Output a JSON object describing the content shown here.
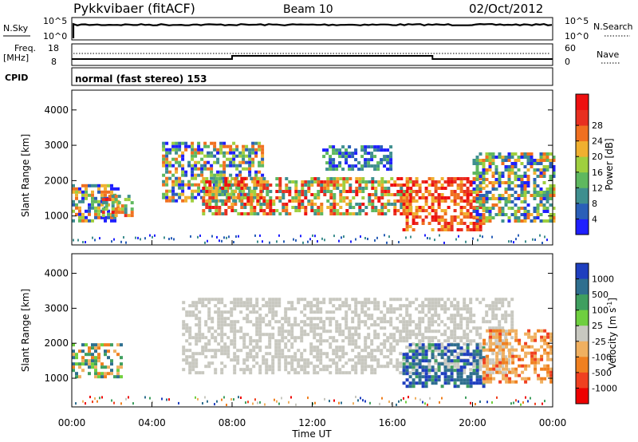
{
  "header": {
    "station": "Pykkvibaer (fitACF)",
    "beam": "Beam 10",
    "date": "02/Oct/2012"
  },
  "sky_panel": {
    "left_label": "N.Sky",
    "left_top_tick": "10^5",
    "left_bottom_tick": "10^0",
    "right_label": "N.Search",
    "right_top_tick": "10^5",
    "right_bottom_tick": "10^0"
  },
  "freq_panel": {
    "left_label_1": "Freq.",
    "left_label_2": "[MHz]",
    "left_top_tick": "18",
    "left_bottom_tick": "8",
    "right_label": "Nave",
    "right_top_tick": "60",
    "right_bottom_tick": "0"
  },
  "cpid_panel": {
    "label": "CPID",
    "mode": "normal (fast stereo) 153"
  },
  "chart_data": [
    {
      "type": "heatmap",
      "name": "power",
      "ylabel": "Slant Range [km]",
      "yticks": [
        "1000",
        "2000",
        "3000",
        "4000"
      ],
      "ylim": [
        180,
        4560
      ],
      "xlim": [
        0,
        24
      ],
      "colorbar_label": "Power [dB]",
      "colorbar_ticks": [
        "4",
        "8",
        "12",
        "16",
        "20",
        "24",
        "28"
      ],
      "colorbar_colors": [
        "#1f1fff",
        "#2a5fb8",
        "#3f8f8f",
        "#5fb85f",
        "#9fcf3f",
        "#f0b030",
        "#f07020",
        "#e83020",
        "#ee1010"
      ],
      "echo_regions": [
        {
          "t0": 0.0,
          "t1": 2.3,
          "r0": 900,
          "r1": 1900,
          "level": "mixed"
        },
        {
          "t0": 1.5,
          "t1": 3.0,
          "r0": 1000,
          "r1": 1600,
          "level": "strong"
        },
        {
          "t0": 4.5,
          "t1": 9.5,
          "r0": 1400,
          "r1": 3100,
          "level": "mixed"
        },
        {
          "t0": 6.5,
          "t1": 17.0,
          "r0": 1100,
          "r1": 2100,
          "level": "strong"
        },
        {
          "t0": 12.5,
          "t1": 16.0,
          "r0": 2300,
          "r1": 3000,
          "level": "weak"
        },
        {
          "t0": 16.5,
          "t1": 20.5,
          "r0": 600,
          "r1": 2100,
          "level": "very_strong"
        },
        {
          "t0": 20.0,
          "t1": 24.0,
          "r0": 900,
          "r1": 2800,
          "level": "mixed"
        }
      ]
    },
    {
      "type": "heatmap",
      "name": "velocity",
      "ylabel": "Slant Range [km]",
      "xlabel": "Time UT",
      "yticks": [
        "1000",
        "2000",
        "3000",
        "4000"
      ],
      "ylim": [
        180,
        4560
      ],
      "xlim": [
        0,
        24
      ],
      "xticks": [
        "00:00",
        "04:00",
        "08:00",
        "12:00",
        "16:00",
        "20:00",
        "00:00"
      ],
      "colorbar_label": "Velocity [m s",
      "colorbar_label_exp": "-1",
      "colorbar_label_end": "]",
      "colorbar_ticks": [
        "1000",
        "500",
        "100",
        "25",
        "-25",
        "-100",
        "-500",
        "-1000"
      ],
      "colorbar_colors": [
        "#1f3fbf",
        "#2f6f8f",
        "#3f9f5f",
        "#6fcf3f",
        "#c8c8c0",
        "#f0b060",
        "#f08020",
        "#f04020",
        "#ee0000"
      ],
      "ground_scatter": {
        "t0": 5.5,
        "t1": 22.0,
        "r0": 1200,
        "r1": 3300,
        "color": "gray"
      },
      "echo_regions": [
        {
          "t0": 0.0,
          "t1": 2.5,
          "r0": 1000,
          "r1": 2000,
          "level": "mixed_orange_green"
        },
        {
          "t0": 16.5,
          "t1": 20.5,
          "r0": 800,
          "r1": 2000,
          "level": "blue_green"
        },
        {
          "t0": 20.5,
          "t1": 24.0,
          "r0": 900,
          "r1": 2400,
          "level": "orange"
        }
      ]
    }
  ]
}
